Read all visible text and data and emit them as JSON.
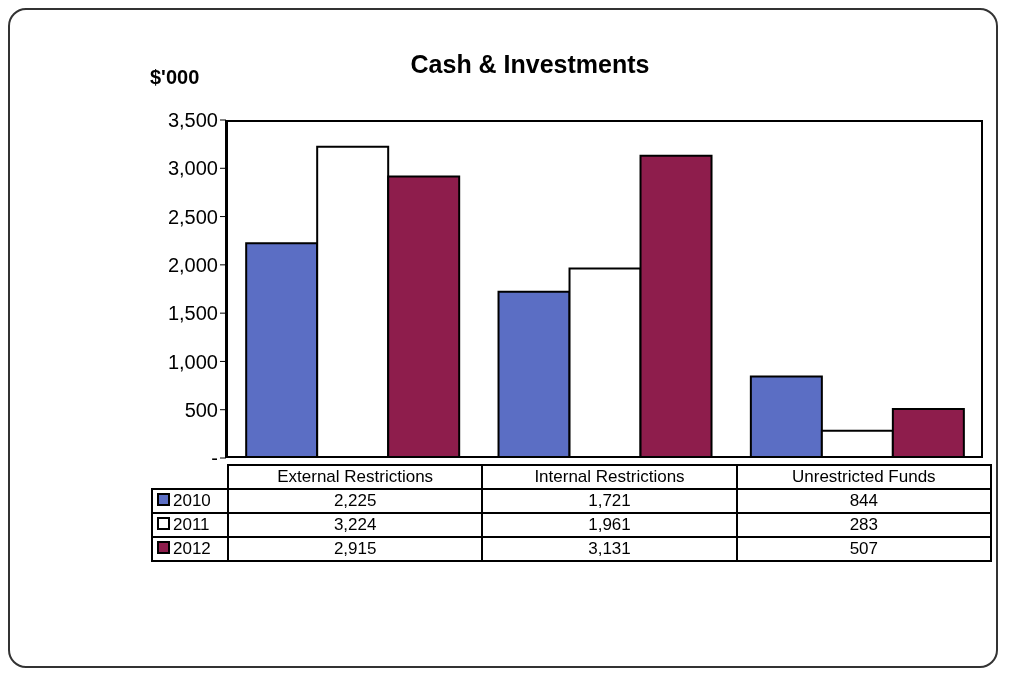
{
  "chart_data": {
    "type": "bar",
    "title": "Cash & Investments",
    "ylabel": "$'000",
    "categories": [
      "External Restrictions",
      "Internal Restrictions",
      "Unrestricted Funds"
    ],
    "series": [
      {
        "name": "2010",
        "color": "#5b6ec4",
        "values": [
          2225,
          1721,
          844
        ],
        "value_labels": [
          "2,225",
          "1,721",
          "844"
        ]
      },
      {
        "name": "2011",
        "color": "#ffffff",
        "values": [
          3224,
          1961,
          283
        ],
        "value_labels": [
          "3,224",
          "1,961",
          "283"
        ]
      },
      {
        "name": "2012",
        "color": "#8e1d4c",
        "values": [
          2915,
          3131,
          507
        ],
        "value_labels": [
          "2,915",
          "3,131",
          "507"
        ]
      }
    ],
    "ylim": [
      0,
      3500
    ],
    "yticks": [
      {
        "value": 0,
        "label": "-"
      },
      {
        "value": 500,
        "label": "500"
      },
      {
        "value": 1000,
        "label": "1,000"
      },
      {
        "value": 1500,
        "label": "1,500"
      },
      {
        "value": 2000,
        "label": "2,000"
      },
      {
        "value": 2500,
        "label": "2,500"
      },
      {
        "value": 3000,
        "label": "3,000"
      },
      {
        "value": 3500,
        "label": "3,500"
      }
    ],
    "grid": false,
    "legend": "bottom"
  }
}
